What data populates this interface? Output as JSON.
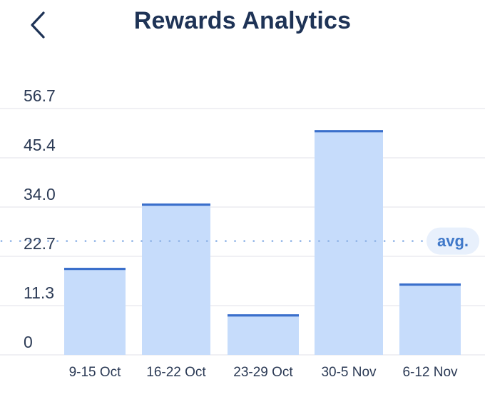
{
  "header": {
    "title": "Rewards Analytics",
    "back_icon": "chevron-left-icon"
  },
  "colors": {
    "bar_fill": "#c6dcfb",
    "bar_top": "#3a6fcb",
    "grid": "#ececf0",
    "avg_line": "#8fb3e6",
    "avg_badge_bg": "#e8f0fc",
    "avg_text": "#3f78c9",
    "title": "#1e3356"
  },
  "chart_data": {
    "type": "bar",
    "categories": [
      "9-15 Oct",
      "16-22 Oct",
      "23-29 Oct",
      "30-5 Nov",
      "6-12 Nov"
    ],
    "values": [
      19.8,
      34.6,
      9.1,
      51.5,
      16.2
    ],
    "y_ticks": [
      "0",
      "11.3",
      "22.7",
      "34.0",
      "45.4",
      "56.7"
    ],
    "ylim": [
      0,
      56.7
    ],
    "average": 26.2,
    "average_label": "avg.",
    "grid": true
  }
}
